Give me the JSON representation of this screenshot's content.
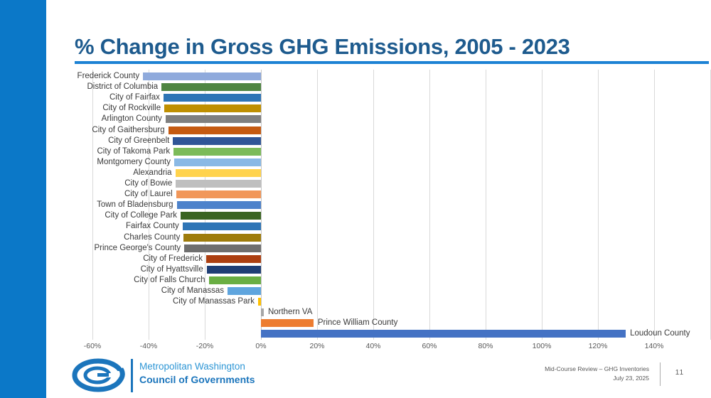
{
  "slide": {
    "title": "% Change in Gross GHG Emissions, 2005 - 2023",
    "accent_bar_color": "#0B78C8",
    "title_color": "#1E5B8E",
    "title_rule_color": "#1C82D4"
  },
  "chart_data": {
    "type": "bar",
    "orientation": "horizontal",
    "title": "% Change in Gross GHG Emissions, 2005 - 2023",
    "xlabel": "",
    "ylabel": "",
    "xlim": [
      -60,
      160
    ],
    "grid": true,
    "x_ticks": [
      -60,
      -40,
      -20,
      0,
      20,
      40,
      60,
      80,
      100,
      120,
      140
    ],
    "x_tick_labels": [
      "-60%",
      "-40%",
      "-20%",
      "0%",
      "20%",
      "40%",
      "60%",
      "80%",
      "100%",
      "120%",
      "140%"
    ],
    "categories": [
      "Frederick County",
      "District of Columbia",
      "City of Fairfax",
      "City of Rockville",
      "Arlington County",
      "City of Gaithersburg",
      "City of Greenbelt",
      "City of Takoma Park",
      "Montgomery County",
      "Alexandria",
      "City of Bowie",
      "City of Laurel",
      "Town of Bladensburg",
      "City of College Park",
      "Fairfax County",
      "Charles County",
      "Prince George's County",
      "City of Frederick",
      "City of Hyattsville",
      "City of Falls Church",
      "City of Manassas",
      "City of Manassas Park",
      "Northern VA",
      "Prince William County",
      "Loudoun County"
    ],
    "values": [
      -42.0,
      -35.4,
      -34.7,
      -34.4,
      -34.0,
      -33.0,
      -31.3,
      -31.1,
      -30.9,
      -30.5,
      -30.3,
      -30.2,
      -30.0,
      -28.6,
      -27.9,
      -27.5,
      -27.3,
      -19.5,
      -19.3,
      -18.6,
      -11.9,
      -1.0,
      1.0,
      18.7,
      129.9
    ],
    "bar_colors": [
      "#8FAADC",
      "#4E8542",
      "#2E75B6",
      "#BF8F00",
      "#7F7F7F",
      "#C55A11",
      "#2F5597",
      "#7CBB59",
      "#8AB9E5",
      "#FFD34D",
      "#BFBFBF",
      "#F1975A",
      "#4D82CB",
      "#3A6421",
      "#2E75B6",
      "#9E7C0C",
      "#6F6F6F",
      "#AC3F11",
      "#1F3E75",
      "#69AE43",
      "#5FA5DE",
      "#FFC000",
      "#A6A6A6",
      "#ED7D31",
      "#4472C4"
    ],
    "gridline_color": "#D9D9D9",
    "zero_line_color": "#C6C6C6"
  },
  "footer": {
    "org_line1": "Metropolitan Washington",
    "org_line2": "Council of Governments",
    "brand_color": "#1B75BC",
    "brand_light_color": "#2E96D5",
    "deck_title": "Mid-Course Review – GHG Inventories",
    "deck_date": "July 23, 2025",
    "page_number": "11"
  }
}
